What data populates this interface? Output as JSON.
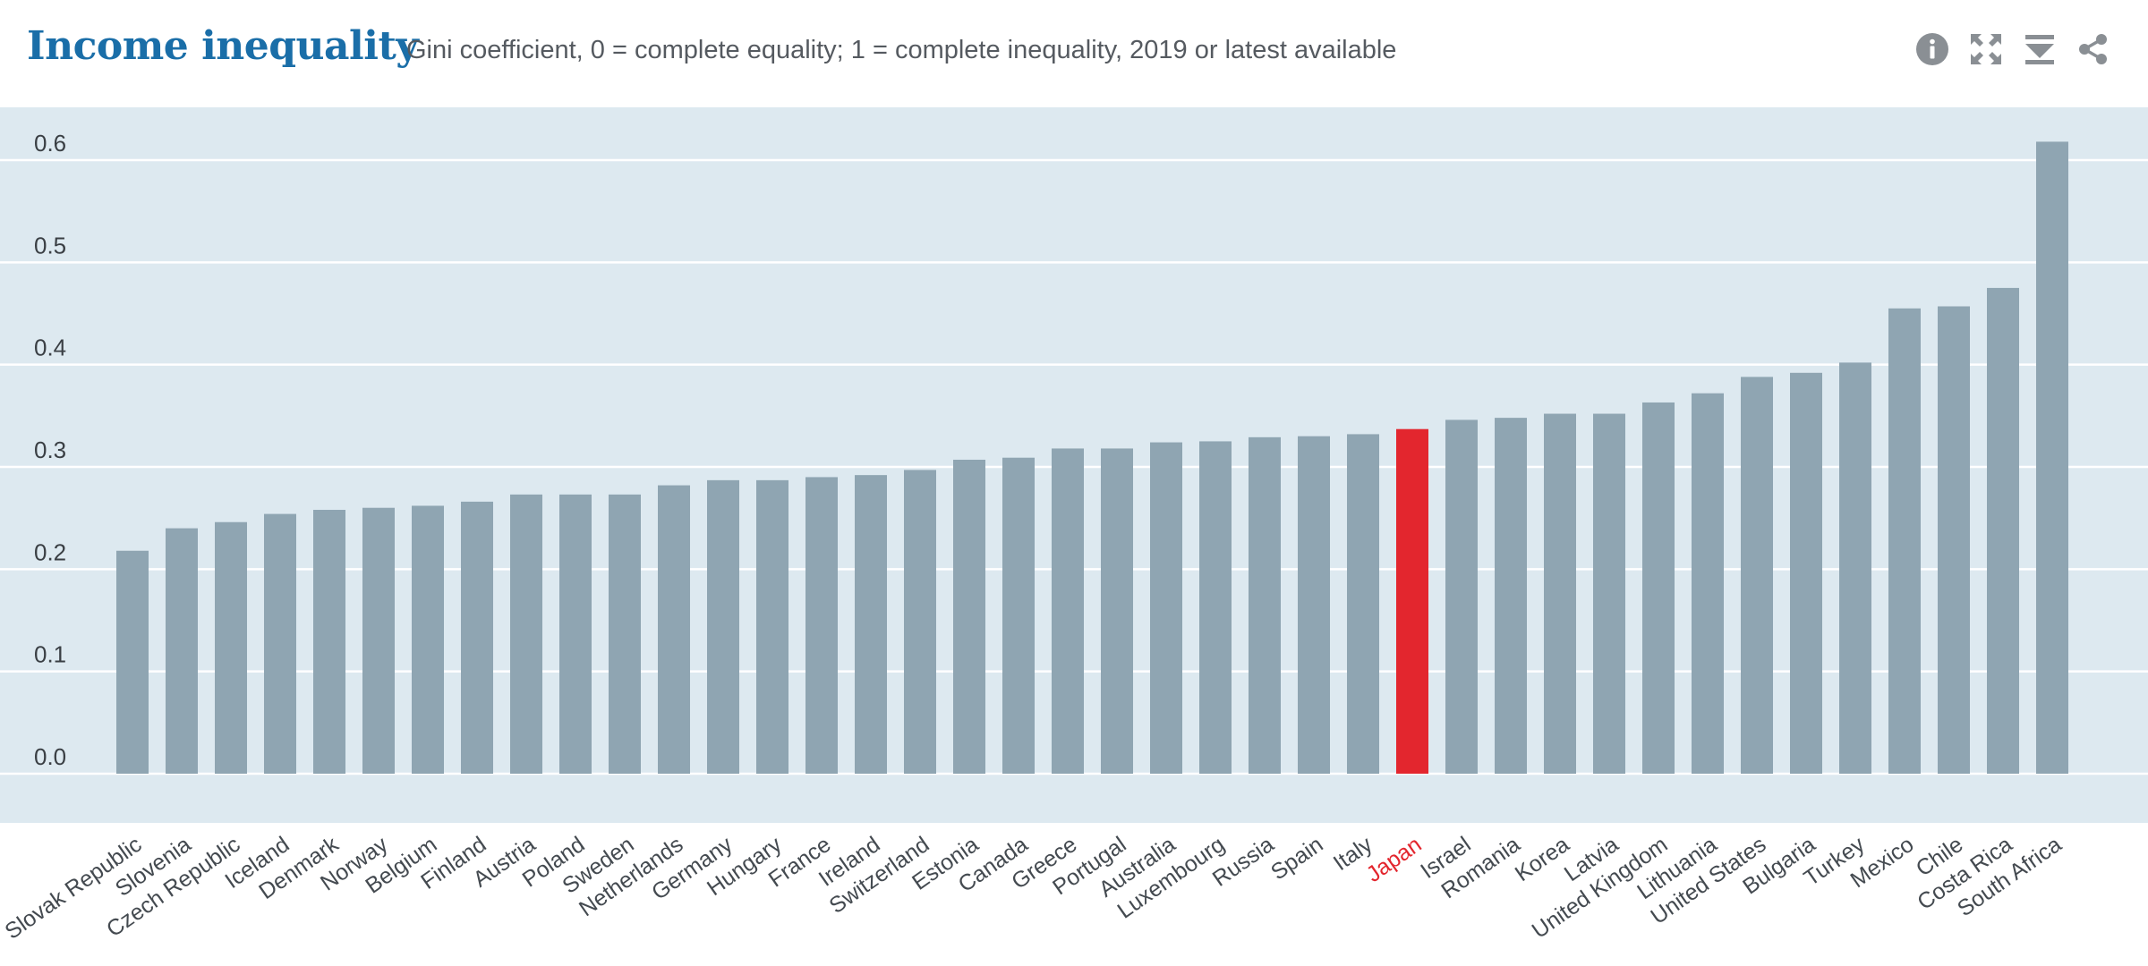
{
  "header": {
    "title": "Income inequality",
    "subtitle": "Gini coefficient, 0 = complete equality; 1 = complete inequality, 2019 or latest available"
  },
  "tools": [
    "info-icon",
    "fullscreen-icon",
    "download-icon",
    "share-icon"
  ],
  "colors": {
    "plot_bg": "#dde9f0",
    "bar": "#8fa5b2",
    "highlight": "#e3262e",
    "title": "#1a6ea8",
    "tick": "#3a3f44",
    "label": "#444a50",
    "icon": "#8a8f94"
  },
  "chart_data": {
    "type": "bar",
    "title": "Income inequality",
    "subtitle": "Gini coefficient, 0 = complete equality; 1 = complete inequality, 2019 or latest available",
    "xlabel": "",
    "ylabel": "",
    "ylim": [
      0,
      0.6
    ],
    "yticks": [
      "0.0",
      "0.1",
      "0.2",
      "0.3",
      "0.4",
      "0.5",
      "0.6"
    ],
    "highlight": "Japan",
    "categories": [
      "Slovak Republic",
      "Slovenia",
      "Czech Republic",
      "Iceland",
      "Denmark",
      "Norway",
      "Belgium",
      "Finland",
      "Austria",
      "Poland",
      "Sweden",
      "Netherlands",
      "Germany",
      "Hungary",
      "France",
      "Ireland",
      "Switzerland",
      "Estonia",
      "Canada",
      "Greece",
      "Portugal",
      "Australia",
      "Luxembourg",
      "Russia",
      "Spain",
      "Italy",
      "Japan",
      "Israel",
      "Romania",
      "Korea",
      "Latvia",
      "United Kingdom",
      "Lithuania",
      "United States",
      "Bulgaria",
      "Turkey",
      "Mexico",
      "Chile",
      "Costa Rica",
      "South Africa"
    ],
    "values": [
      0.218,
      0.24,
      0.246,
      0.254,
      0.258,
      0.26,
      0.262,
      0.266,
      0.273,
      0.273,
      0.273,
      0.282,
      0.287,
      0.287,
      0.29,
      0.292,
      0.297,
      0.307,
      0.309,
      0.318,
      0.318,
      0.324,
      0.325,
      0.329,
      0.33,
      0.332,
      0.337,
      0.346,
      0.348,
      0.352,
      0.352,
      0.363,
      0.372,
      0.388,
      0.392,
      0.402,
      0.455,
      0.457,
      0.475,
      0.618
    ]
  }
}
